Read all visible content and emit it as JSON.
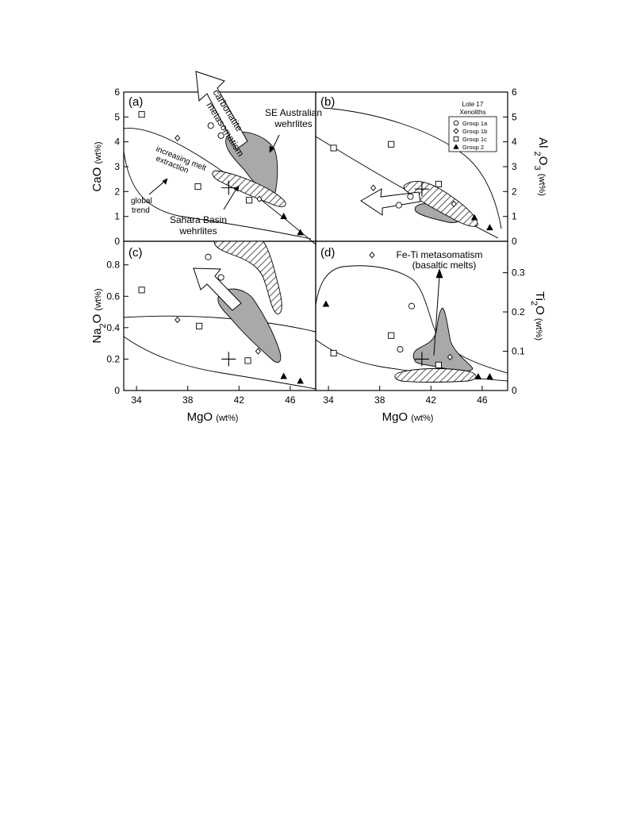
{
  "chart_data": [
    {
      "type": "scatter",
      "panel_label": "(a)",
      "xlabel": "MgO (wt%)",
      "ylabel": "CaO (wt%)",
      "xlim": [
        33,
        48
      ],
      "ylim": [
        0,
        6
      ],
      "xticks": [
        34,
        38,
        42,
        46
      ],
      "yticks": [
        0,
        1,
        2,
        3,
        4,
        5,
        6
      ],
      "axis_side": "left",
      "annotations": [
        "carbonatite metasomatism",
        "SE Australian wehrlites",
        "increasing melt extraction",
        "global trend",
        "Sahara Basin wehrlites"
      ],
      "cross": [
        41.2,
        2.15
      ],
      "series": [
        {
          "name": "Group 1a",
          "marker": "circle",
          "points": [
            [
              39.8,
              4.65
            ],
            [
              40.6,
              4.25
            ]
          ]
        },
        {
          "name": "Group 1b",
          "marker": "diamond",
          "points": [
            [
              37.2,
              4.15
            ],
            [
              43.6,
              1.7
            ]
          ]
        },
        {
          "name": "Group 1c",
          "marker": "square",
          "points": [
            [
              34.4,
              5.1
            ],
            [
              38.8,
              2.2
            ],
            [
              42.8,
              1.65
            ]
          ]
        },
        {
          "name": "Group 2",
          "marker": "triangle",
          "points": [
            [
              45.5,
              1.0
            ],
            [
              46.8,
              0.35
            ]
          ]
        }
      ]
    },
    {
      "type": "scatter",
      "panel_label": "(b)",
      "xlabel": "",
      "ylabel": "Al2O3 (wt%)",
      "xlim": [
        33,
        48
      ],
      "ylim": [
        0,
        6
      ],
      "xticks": [
        34,
        38,
        42,
        46
      ],
      "yticks": [
        0,
        1,
        2,
        3,
        4,
        5,
        6
      ],
      "axis_side": "right",
      "legend": {
        "title": "Lote 17 Xenoliths",
        "position": "top-right",
        "entries": [
          "Group 1a",
          "Group 1b",
          "Group 1c",
          "Group 2"
        ]
      },
      "cross": [
        41.3,
        2.1
      ],
      "series": [
        {
          "name": "Group 1a",
          "marker": "circle",
          "points": [
            [
              39.5,
              1.45
            ],
            [
              40.4,
              1.8
            ]
          ]
        },
        {
          "name": "Group 1b",
          "marker": "diamond",
          "points": [
            [
              37.5,
              2.15
            ],
            [
              43.8,
              1.5
            ]
          ]
        },
        {
          "name": "Group 1c",
          "marker": "square",
          "points": [
            [
              34.4,
              3.75
            ],
            [
              38.9,
              3.9
            ],
            [
              42.6,
              2.3
            ]
          ]
        },
        {
          "name": "Group 2",
          "marker": "triangle",
          "points": [
            [
              45.4,
              0.95
            ],
            [
              46.6,
              0.55
            ]
          ]
        }
      ]
    },
    {
      "type": "scatter",
      "panel_label": "(c)",
      "xlabel": "MgO (wt%)",
      "ylabel": "Na2O (wt%)",
      "xlim": [
        33,
        48
      ],
      "ylim": [
        0,
        0.95
      ],
      "xticks": [
        34,
        38,
        42,
        46
      ],
      "yticks": [
        0,
        0.2,
        0.4,
        0.6,
        0.8
      ],
      "axis_side": "left",
      "cross": [
        41.2,
        0.2
      ],
      "series": [
        {
          "name": "Group 1a",
          "marker": "circle",
          "points": [
            [
              39.6,
              0.85
            ],
            [
              40.6,
              0.72
            ]
          ]
        },
        {
          "name": "Group 1b",
          "marker": "diamond",
          "points": [
            [
              37.2,
              0.45
            ],
            [
              43.5,
              0.25
            ]
          ]
        },
        {
          "name": "Group 1c",
          "marker": "square",
          "points": [
            [
              34.4,
              0.64
            ],
            [
              38.9,
              0.41
            ],
            [
              42.7,
              0.19
            ]
          ]
        },
        {
          "name": "Group 2",
          "marker": "triangle",
          "points": [
            [
              45.5,
              0.09
            ],
            [
              46.8,
              0.06
            ]
          ]
        }
      ]
    },
    {
      "type": "scatter",
      "panel_label": "(d)",
      "xlabel": "MgO (wt%)",
      "ylabel": "TiO2 (wt%)",
      "xlim": [
        33,
        48
      ],
      "ylim": [
        0,
        0.38
      ],
      "xticks": [
        34,
        38,
        42,
        46
      ],
      "yticks": [
        0,
        0.1,
        0.2,
        0.3
      ],
      "axis_side": "right",
      "annotations": [
        "Fe-Ti metasomatism (basaltic melts)"
      ],
      "cross": [
        41.3,
        0.08
      ],
      "series": [
        {
          "name": "Group 1a",
          "marker": "circle",
          "points": [
            [
              39.6,
              0.105
            ],
            [
              40.5,
              0.215
            ]
          ]
        },
        {
          "name": "Group 1b",
          "marker": "diamond",
          "points": [
            [
              37.4,
              0.345
            ],
            [
              43.5,
              0.085
            ]
          ]
        },
        {
          "name": "Group 1c",
          "marker": "square",
          "points": [
            [
              34.4,
              0.095
            ],
            [
              38.9,
              0.14
            ],
            [
              42.6,
              0.065
            ]
          ]
        },
        {
          "name": "Group 2",
          "marker": "triangle",
          "points": [
            [
              33.8,
              0.22
            ],
            [
              46.6,
              0.035
            ],
            [
              45.7,
              0.035
            ]
          ]
        }
      ]
    }
  ]
}
